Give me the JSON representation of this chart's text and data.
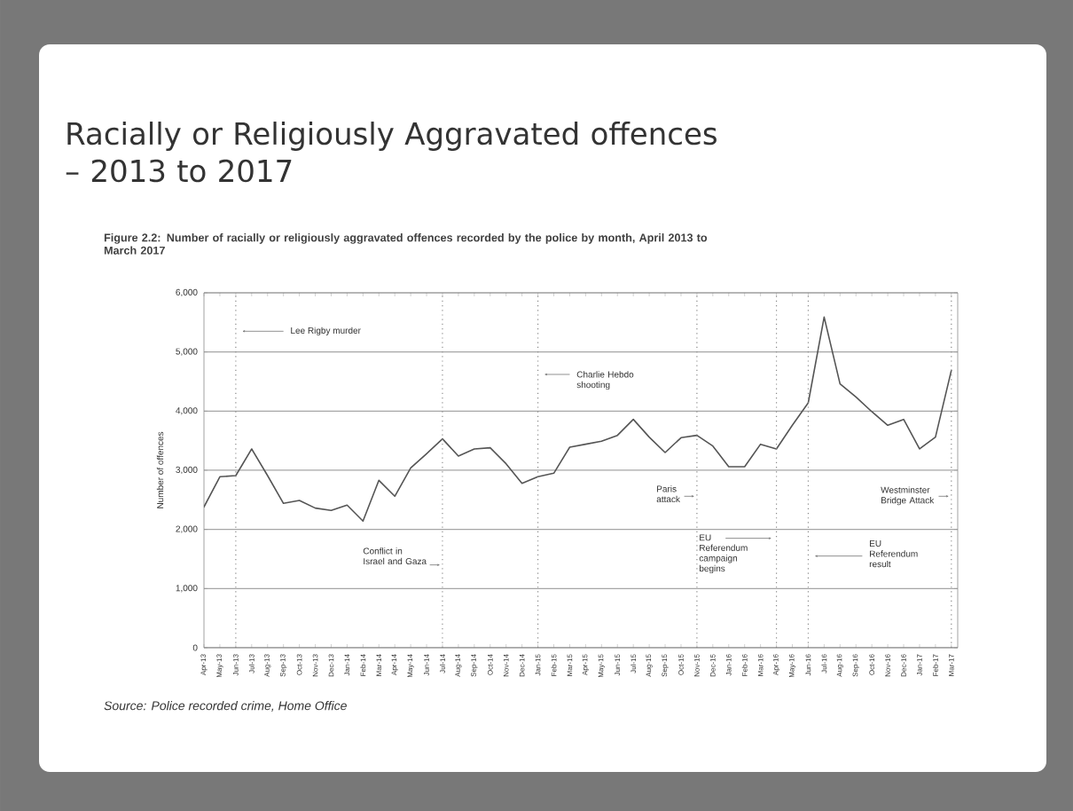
{
  "chart_data": {
    "type": "line",
    "title": "Racially or Religiously Aggravated offences – 2013 to 2017",
    "subtitle": "Figure 2.2: Number of racially or religiously aggravated offences recorded by the police by month, April 2013 to March 2017",
    "ylabel": "Number of offences",
    "annotations": [
      "Source: Police recorded crime, Home Office"
    ],
    "categories": [
      "Apr-13",
      "May-13",
      "Jun-13",
      "Jul-13",
      "Aug-13",
      "Sep-13",
      "Oct-13",
      "Nov-13",
      "Dec-13",
      "Jan-14",
      "Feb-14",
      "Mar-14",
      "Apr-14",
      "May-14",
      "Jun-14",
      "Jul-14",
      "Aug-14",
      "Sep-14",
      "Oct-14",
      "Nov-14",
      "Dec-14",
      "Jan-15",
      "Feb-15",
      "Mar-15",
      "Apr-15",
      "May-15",
      "Jun-15",
      "Jul-15",
      "Aug-15",
      "Sep-15",
      "Oct-15",
      "Nov-15",
      "Dec-15",
      "Jan-16",
      "Feb-16",
      "Mar-16",
      "Apr-16",
      "May-16",
      "Jun-16",
      "Jul-16",
      "Aug-16",
      "Sep-16",
      "Oct-16",
      "Nov-16",
      "Dec-16",
      "Jan-17",
      "Feb-17",
      "Mar-17"
    ],
    "series": [
      {
        "color": "#555555",
        "values": [
          2380,
          2890,
          2910,
          3360,
          2910,
          2440,
          2490,
          2360,
          2320,
          2410,
          2140,
          2830,
          2560,
          3040,
          3280,
          3530,
          3240,
          3360,
          3380,
          3110,
          2780,
          2890,
          2950,
          3390,
          3440,
          3490,
          3590,
          3860,
          3560,
          3300,
          3550,
          3590,
          3410,
          3060,
          3060,
          3440,
          3360,
          3760,
          4140,
          5590,
          4460,
          4240,
          3990,
          3760,
          3860,
          3360,
          3560,
          4690
        ]
      }
    ],
    "ylim": [
      0,
      6000
    ],
    "yticks": [
      0,
      {
        "value": 1000,
        "label": "1,000"
      },
      {
        "value": 2000,
        "label": "2,000"
      },
      {
        "value": 3000,
        "label": "3,000"
      },
      {
        "value": 4000,
        "label": "4,000"
      },
      {
        "value": 5000,
        "label": "5,000"
      },
      {
        "value": 6000,
        "label": "6,000"
      }
    ],
    "grid": "y",
    "marker": "none",
    "line_style": "solid",
    "ref_lines": [
      {
        "axis": "x",
        "value": "Jun-13",
        "label": "Lee Rigby murder",
        "color": "#888888",
        "line_style": "dotted"
      },
      {
        "axis": "x",
        "value": "Jul-14",
        "label": "Conflict in Israel and Gaza",
        "color": "#888888",
        "line_style": "dotted"
      },
      {
        "axis": "x",
        "value": "Jan-15",
        "label": "Charlie Hebdo shooting",
        "color": "#888888",
        "line_style": "dotted"
      },
      {
        "axis": "x",
        "value": "Nov-15",
        "label": "Paris attack",
        "color": "#888888",
        "line_style": "dotted"
      },
      {
        "axis": "x",
        "value": "Apr-16",
        "label": "EU Referendum campaign begins",
        "color": "#888888",
        "line_style": "dotted"
      },
      {
        "axis": "x",
        "value": "Jun-16",
        "label": "EU Referendum result",
        "color": "#888888",
        "line_style": "dotted"
      },
      {
        "axis": "x",
        "value": "Mar-17",
        "label": "Westminster Bridge Attack",
        "color": "#888888",
        "line_style": "dotted"
      }
    ]
  }
}
